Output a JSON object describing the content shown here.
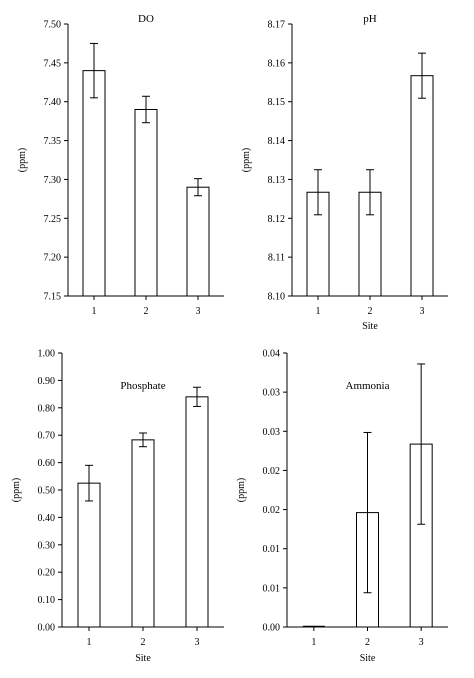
{
  "chart_data": [
    {
      "type": "bar",
      "title": "DO",
      "xlabel": "",
      "ylabel": "(ppm)",
      "categories": [
        "1",
        "2",
        "3"
      ],
      "values": [
        7.44,
        7.39,
        7.29
      ],
      "errors": [
        0.035,
        0.017,
        0.011
      ],
      "ylim": [
        7.15,
        7.5
      ],
      "yticks": [
        "7.15",
        "7.20",
        "7.25",
        "7.30",
        "7.35",
        "7.40",
        "7.45",
        "7.50"
      ],
      "grid": false
    },
    {
      "type": "bar",
      "title": "pH",
      "xlabel": "Site",
      "ylabel": "(ppm)",
      "categories": [
        "1",
        "2",
        "3"
      ],
      "values": [
        8.1267,
        8.1267,
        8.1567
      ],
      "errors": [
        0.0058,
        0.0058,
        0.0058
      ],
      "ylim": [
        8.1,
        8.17
      ],
      "yticks": [
        "8.10",
        "8.11",
        "8.12",
        "8.13",
        "8.14",
        "8.15",
        "8.16",
        "8.17"
      ],
      "grid": false
    },
    {
      "type": "bar",
      "title": "Phosphate",
      "xlabel": "Site",
      "ylabel": "(ppm)",
      "categories": [
        "1",
        "2",
        "3"
      ],
      "values": [
        0.525,
        0.683,
        0.84
      ],
      "errors": [
        0.065,
        0.025,
        0.035
      ],
      "ylim": [
        0,
        1.0
      ],
      "yticks": [
        "0.00",
        "0.10",
        "0.20",
        "0.30",
        "0.40",
        "0.50",
        "0.60",
        "0.70",
        "0.80",
        "0.90",
        "1.00"
      ],
      "grid": false
    },
    {
      "type": "bar",
      "title": "Ammonia",
      "xlabel": "Site",
      "ylabel": "(ppm)",
      "categories": [
        "1",
        "2",
        "3"
      ],
      "values": [
        0.0,
        0.0167,
        0.0267
      ],
      "errors": [
        0.0,
        0.0117,
        0.0117
      ],
      "ylim": [
        0,
        0.04
      ],
      "yticks": [
        "0.00",
        "0.01",
        "0.01",
        "0.02",
        "0.02",
        "0.03",
        "0.03",
        "0.04"
      ],
      "grid": false
    }
  ]
}
